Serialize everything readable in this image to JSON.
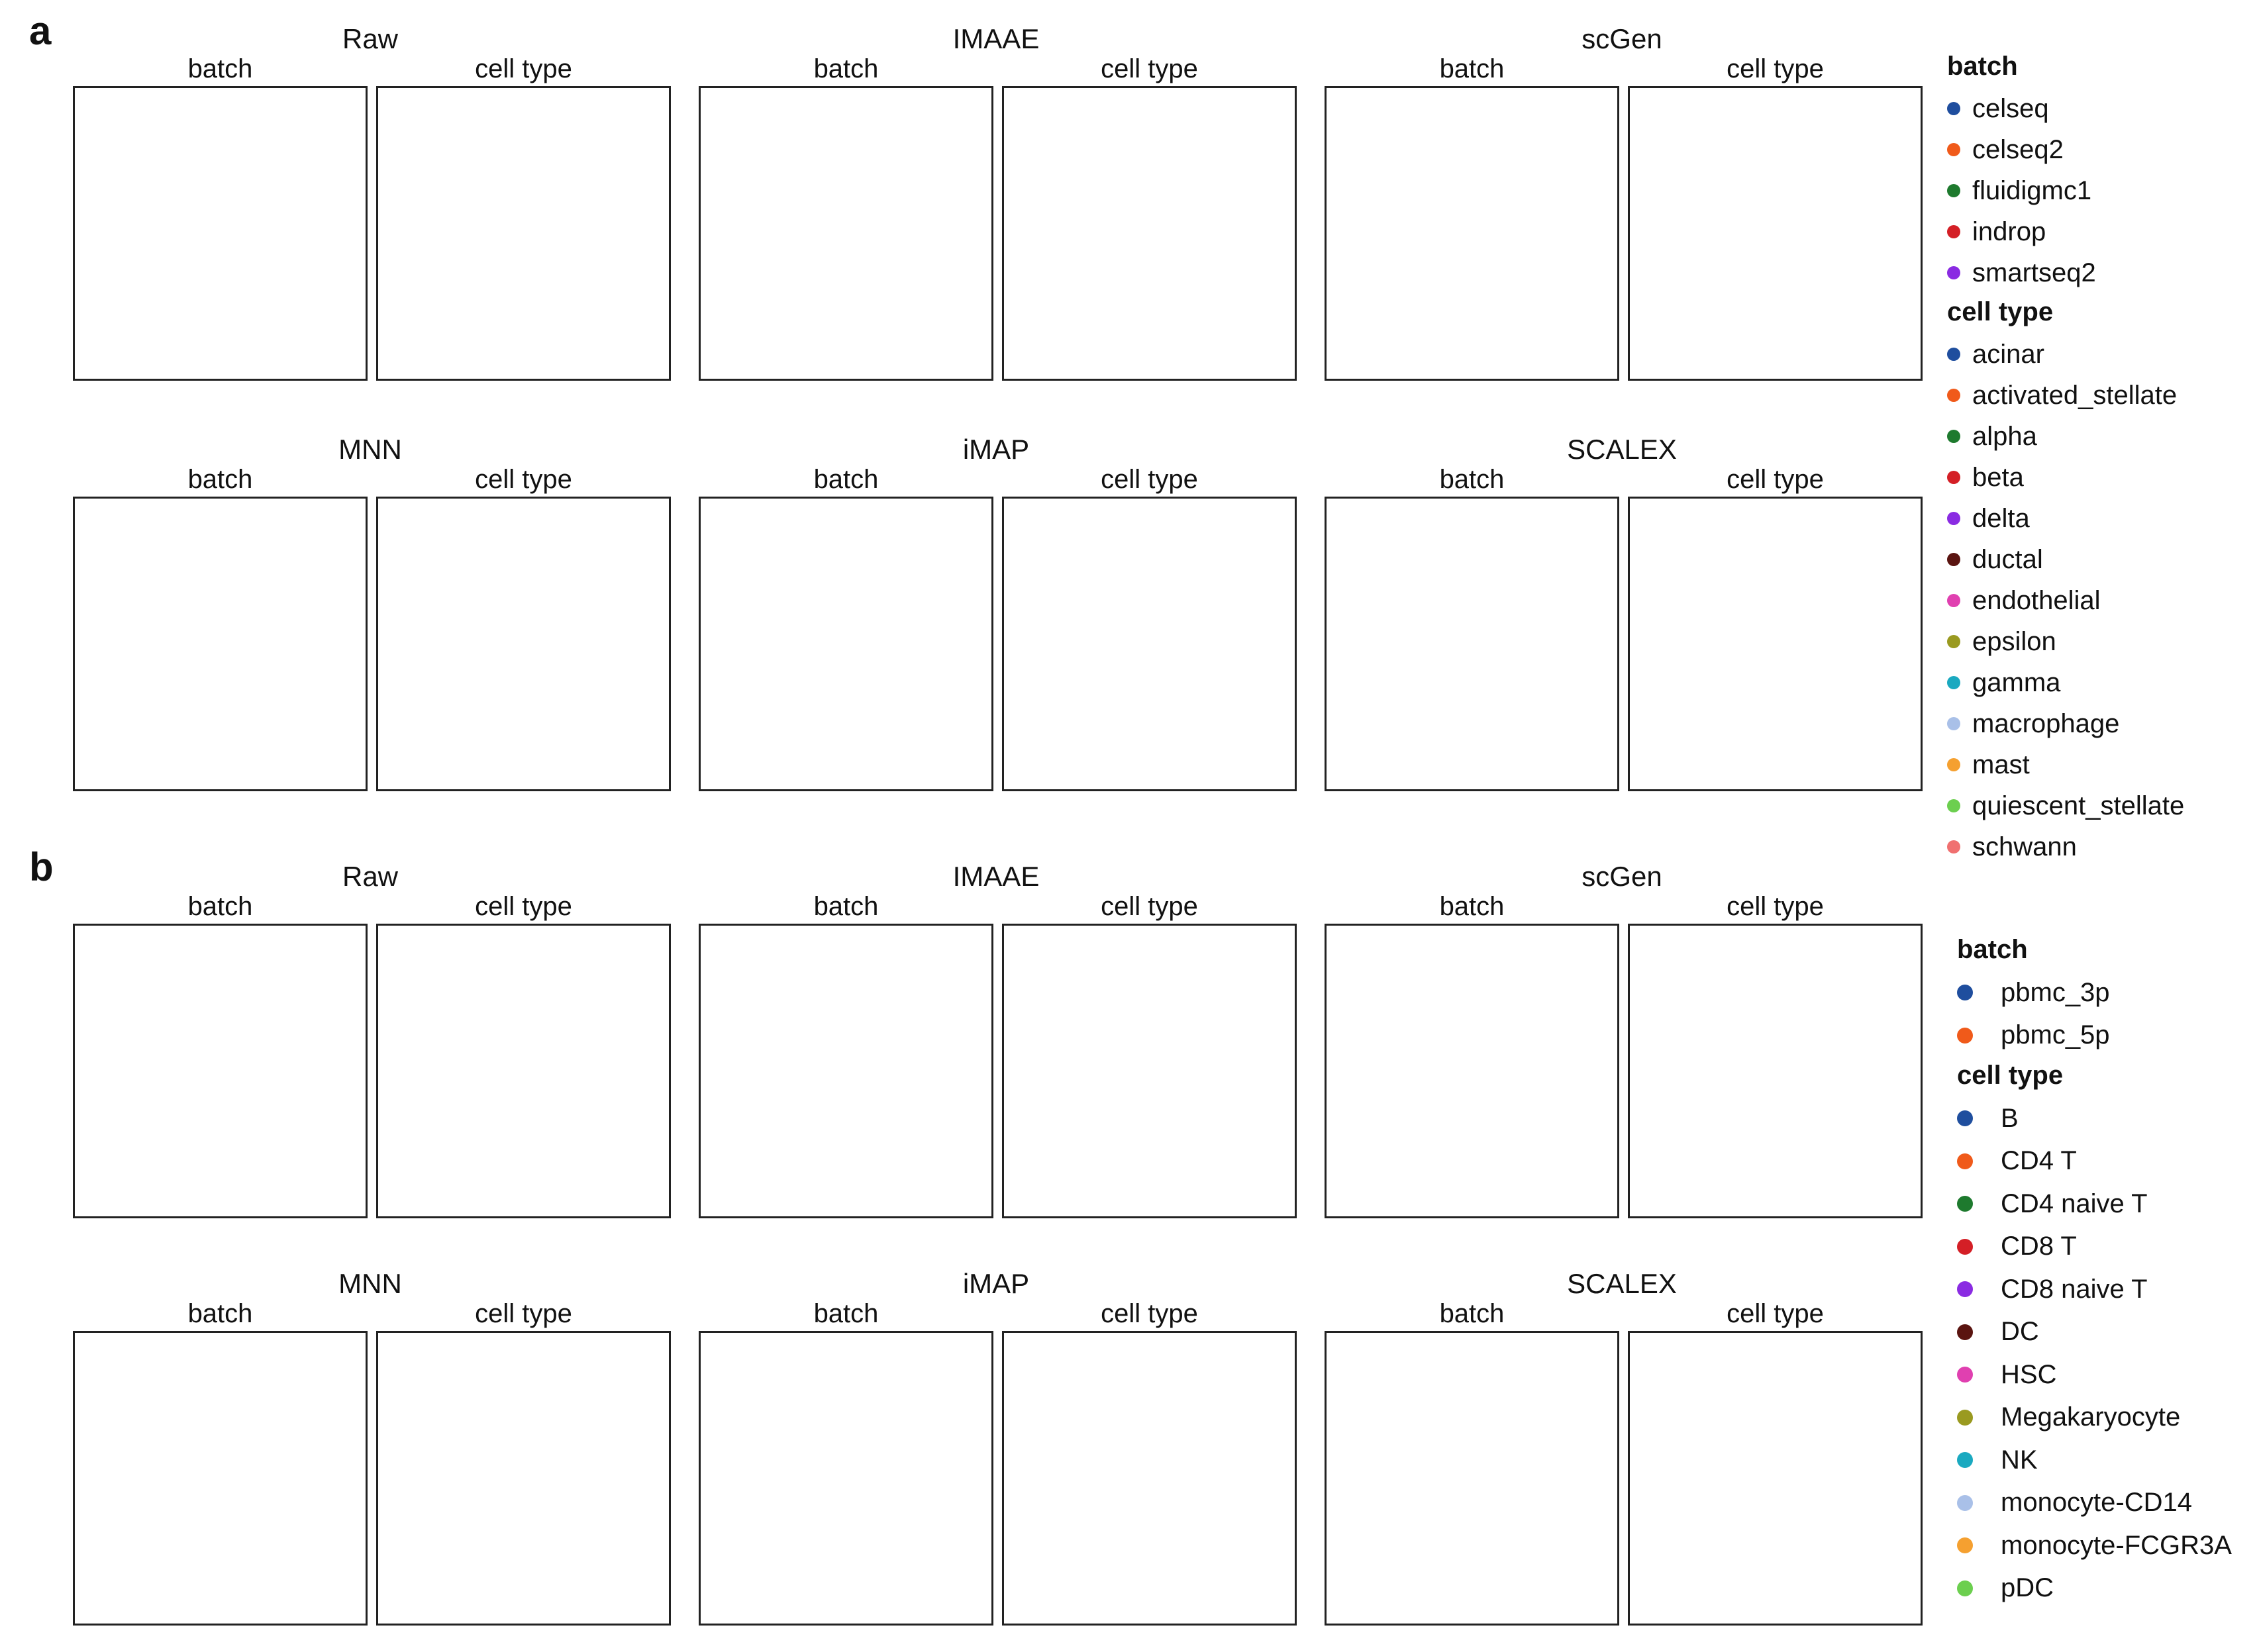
{
  "figure": {
    "panel_letters": [
      "a",
      "b"
    ],
    "subplot_labels": {
      "batch": "batch",
      "celltype": "cell type"
    }
  },
  "chart_data": [
    {
      "type": "scatter",
      "panel": "a",
      "methods": [
        "Raw",
        "IMAAE",
        "scGen",
        "MNN",
        "iMAP",
        "SCALEX"
      ],
      "subplots": [
        "batch",
        "cell type"
      ],
      "legend": {
        "batch_title": "batch",
        "batch": [
          {
            "name": "celseq",
            "color": "#1f4e9e"
          },
          {
            "name": "celseq2",
            "color": "#f05a1a"
          },
          {
            "name": "fluidigmc1",
            "color": "#1e7a2e"
          },
          {
            "name": "indrop",
            "color": "#d41f26"
          },
          {
            "name": "smartseq2",
            "color": "#8a2be2"
          }
        ],
        "celltype_title": "cell type",
        "celltype": [
          {
            "name": "acinar",
            "color": "#1f4e9e"
          },
          {
            "name": "activated_stellate",
            "color": "#f05a1a"
          },
          {
            "name": "alpha",
            "color": "#1e7a2e"
          },
          {
            "name": "beta",
            "color": "#d41f26"
          },
          {
            "name": "delta",
            "color": "#8a2be2"
          },
          {
            "name": "ductal",
            "color": "#5a1410"
          },
          {
            "name": "endothelial",
            "color": "#e040b0"
          },
          {
            "name": "epsilon",
            "color": "#9a9a20"
          },
          {
            "name": "gamma",
            "color": "#1aa9c0"
          },
          {
            "name": "macrophage",
            "color": "#a9c0e8"
          },
          {
            "name": "mast",
            "color": "#f5a030"
          },
          {
            "name": "quiescent_stellate",
            "color": "#6ccf4f"
          },
          {
            "name": "schwann",
            "color": "#f07070"
          }
        ]
      }
    },
    {
      "type": "scatter",
      "panel": "b",
      "methods": [
        "Raw",
        "IMAAE",
        "scGen",
        "MNN",
        "iMAP",
        "SCALEX"
      ],
      "subplots": [
        "batch",
        "cell type"
      ],
      "legend": {
        "batch_title": "batch",
        "batch": [
          {
            "name": "pbmc_3p",
            "color": "#1f4e9e"
          },
          {
            "name": "pbmc_5p",
            "color": "#f05a1a"
          }
        ],
        "celltype_title": "cell type",
        "celltype": [
          {
            "name": "B",
            "color": "#1f4e9e"
          },
          {
            "name": "CD4 T",
            "color": "#f05a1a"
          },
          {
            "name": "CD4 naive T",
            "color": "#1e7a2e"
          },
          {
            "name": "CD8 T",
            "color": "#d41f26"
          },
          {
            "name": "CD8 naive T",
            "color": "#8a2be2"
          },
          {
            "name": "DC",
            "color": "#5a1410"
          },
          {
            "name": "HSC",
            "color": "#e040b0"
          },
          {
            "name": "Megakaryocyte",
            "color": "#9a9a20"
          },
          {
            "name": "NK",
            "color": "#1aa9c0"
          },
          {
            "name": "monocyte-CD14",
            "color": "#a9c0e8"
          },
          {
            "name": "monocyte-FCGR3A",
            "color": "#f5a030"
          },
          {
            "name": "pDC",
            "color": "#6ccf4f"
          }
        ]
      }
    }
  ]
}
